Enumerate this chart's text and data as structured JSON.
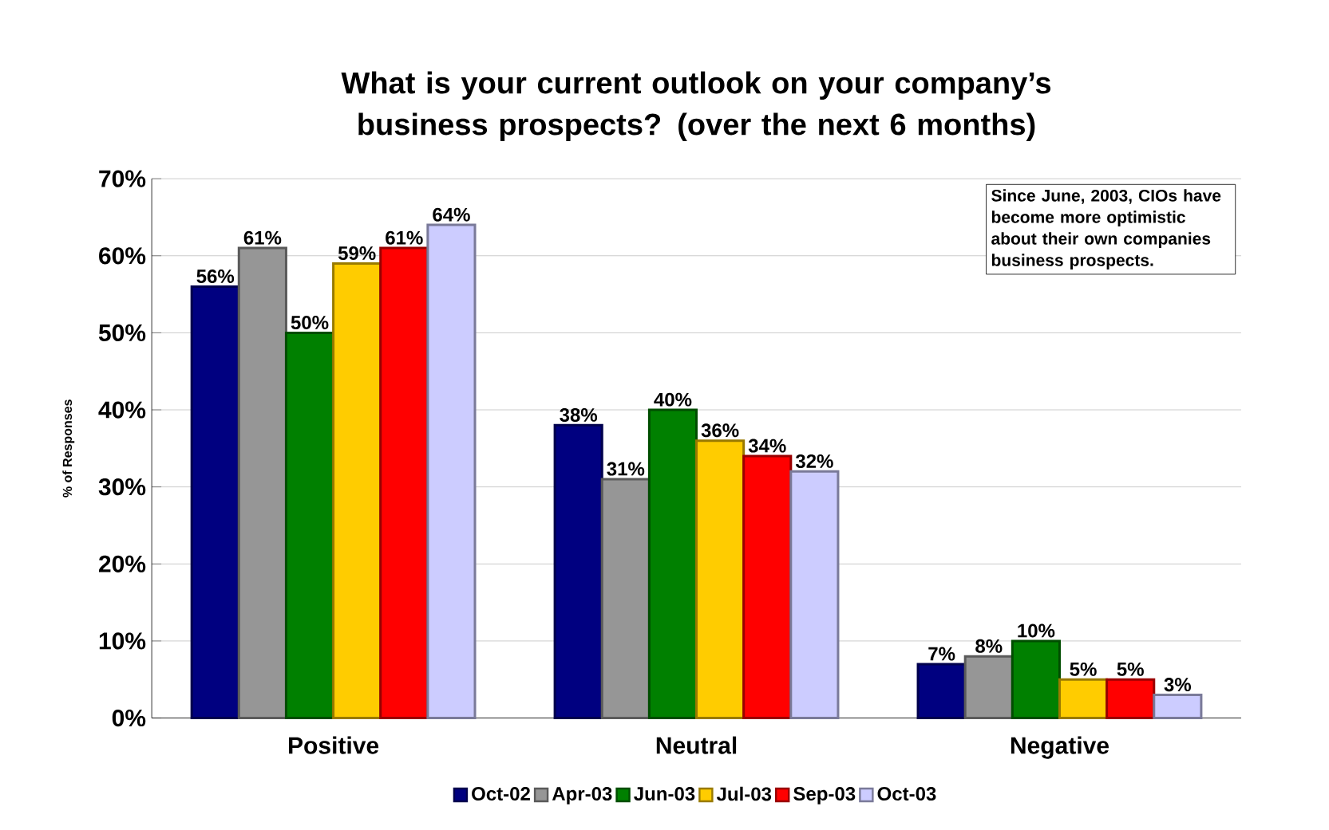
{
  "chart_data": {
    "type": "bar",
    "title": "What is your current outlook on your company’s business prospects? (over the next 6 months)",
    "ylabel": "% of Responses",
    "categories": [
      "Positive",
      "Neutral",
      "Negative"
    ],
    "series": [
      {
        "name": "Oct-02",
        "color": "#000080",
        "values": [
          56,
          38,
          7
        ],
        "value_labels": [
          "56%",
          "38%",
          "7%"
        ]
      },
      {
        "name": "Apr-03",
        "color": "#969696",
        "values": [
          61,
          31,
          8
        ],
        "value_labels": [
          "61%",
          "31%",
          "8%"
        ]
      },
      {
        "name": "Jun-03",
        "color": "#008000",
        "values": [
          50,
          40,
          10
        ],
        "value_labels": [
          "50%",
          "40%",
          "10%"
        ]
      },
      {
        "name": "Jul-03",
        "color": "#ffcc00",
        "values": [
          59,
          36,
          5
        ],
        "value_labels": [
          "59%",
          "36%",
          "5%"
        ]
      },
      {
        "name": "Sep-03",
        "color": "#ff0000",
        "values": [
          61,
          34,
          5
        ],
        "value_labels": [
          "61%",
          "34%",
          "5%"
        ]
      },
      {
        "name": "Oct-03",
        "color": "#ccccff",
        "values": [
          64,
          32,
          3
        ],
        "value_labels": [
          "64%",
          "32%",
          "3%"
        ]
      }
    ],
    "ylim": [
      0,
      70
    ],
    "yticks": [
      {
        "value": 0,
        "label": "0%"
      },
      {
        "value": 10,
        "label": "10%"
      },
      {
        "value": 20,
        "label": "20%"
      },
      {
        "value": 30,
        "label": "30%"
      },
      {
        "value": 40,
        "label": "40%"
      },
      {
        "value": 50,
        "label": "50%"
      },
      {
        "value": 60,
        "label": "60%"
      },
      {
        "value": 70,
        "label": "70%"
      }
    ],
    "grid": "y",
    "legend": "bottom",
    "annotations": [
      "Since June, 2003, CIOs have become more optimistic about their own companies business prospects."
    ]
  }
}
